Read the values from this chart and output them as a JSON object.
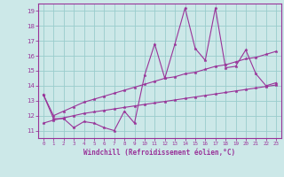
{
  "xlabel": "Windchill (Refroidissement éolien,°C)",
  "bg_color": "#cce8e8",
  "line_color": "#993399",
  "grid_color": "#99cccc",
  "x_values": [
    0,
    1,
    2,
    3,
    4,
    5,
    6,
    7,
    8,
    9,
    10,
    11,
    12,
    13,
    14,
    15,
    16,
    17,
    18,
    19,
    20,
    21,
    22,
    23
  ],
  "zigzag": [
    13.4,
    11.8,
    11.8,
    11.2,
    11.6,
    11.5,
    11.2,
    11.0,
    12.3,
    11.5,
    14.7,
    16.8,
    14.5,
    16.8,
    19.2,
    16.5,
    15.7,
    19.2,
    15.2,
    15.3,
    16.4,
    14.8,
    14.0,
    14.2
  ],
  "upper_line": [
    13.4,
    12.0,
    12.3,
    12.6,
    12.9,
    13.1,
    13.3,
    13.5,
    13.7,
    13.9,
    14.1,
    14.3,
    14.5,
    14.6,
    14.8,
    14.9,
    15.1,
    15.3,
    15.4,
    15.6,
    15.8,
    15.9,
    16.1,
    16.3
  ],
  "lower_line": [
    11.5,
    11.7,
    11.85,
    12.0,
    12.15,
    12.25,
    12.35,
    12.45,
    12.55,
    12.65,
    12.75,
    12.85,
    12.95,
    13.05,
    13.15,
    13.25,
    13.35,
    13.45,
    13.55,
    13.65,
    13.75,
    13.85,
    13.95,
    14.05
  ],
  "ylim": [
    10.5,
    19.5
  ],
  "yticks": [
    11,
    12,
    13,
    14,
    15,
    16,
    17,
    18,
    19
  ],
  "xlim": [
    -0.5,
    23.5
  ],
  "xticks": [
    0,
    1,
    2,
    3,
    4,
    5,
    6,
    7,
    8,
    9,
    10,
    11,
    12,
    13,
    14,
    15,
    16,
    17,
    18,
    19,
    20,
    21,
    22,
    23
  ]
}
